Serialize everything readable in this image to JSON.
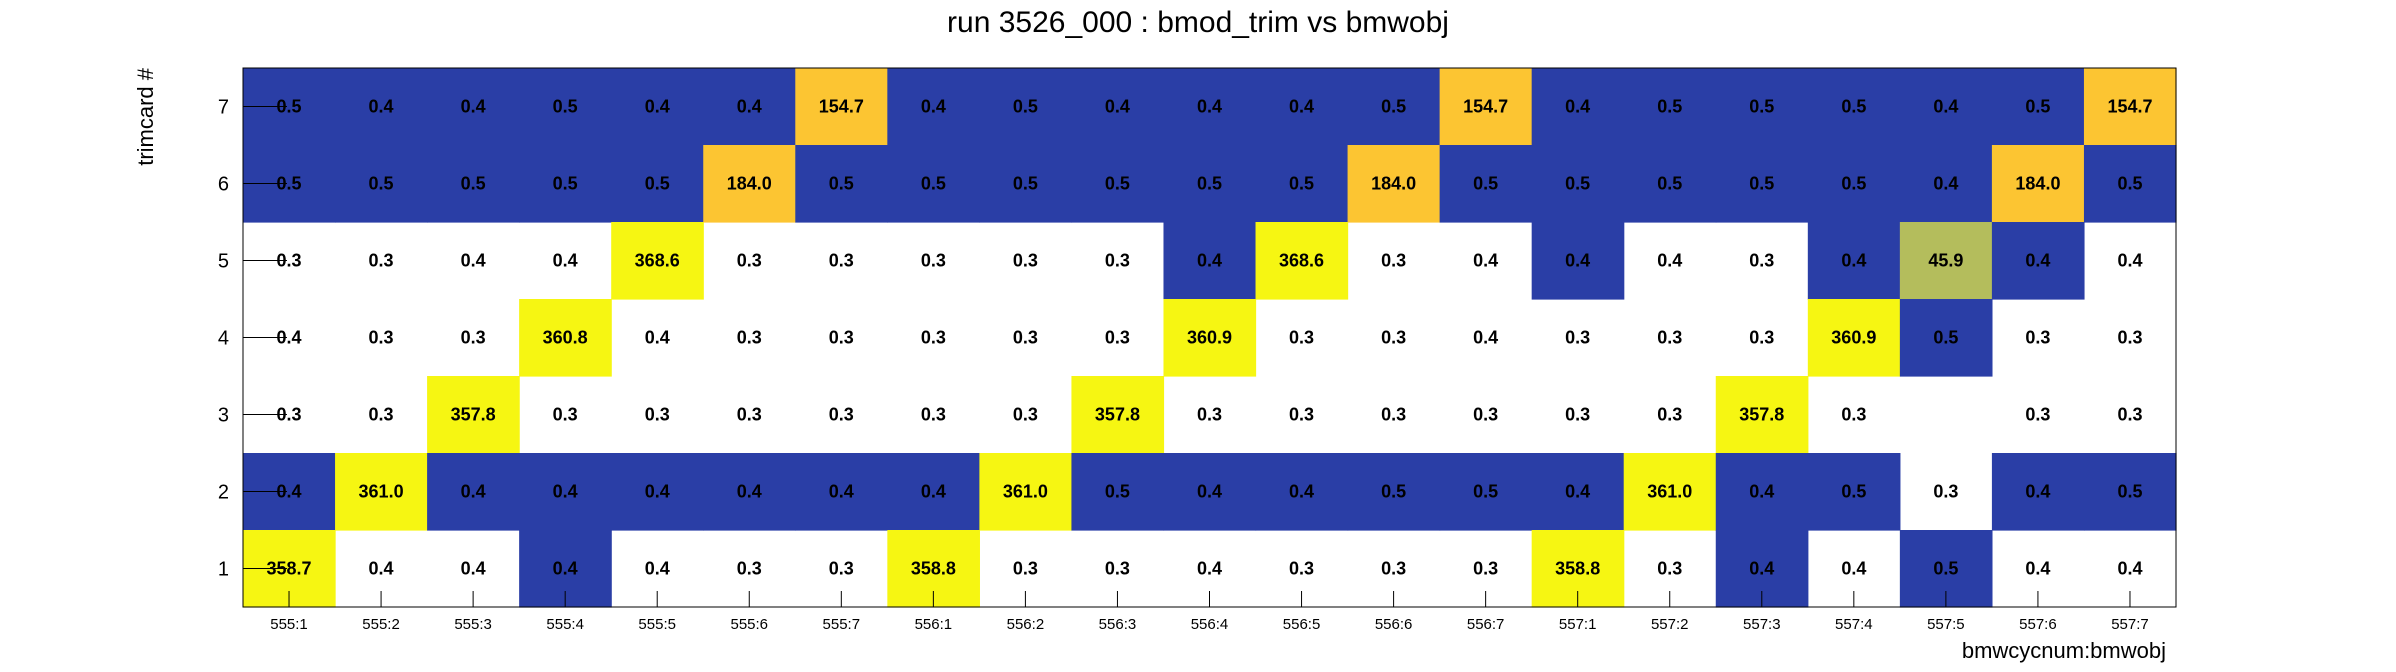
{
  "chart_data": {
    "type": "heatmap",
    "title": "run 3526_000 : bmod_trim vs bmwobj",
    "xlabel": "bmwcycnum:bmwobj",
    "ylabel": "trimcard #",
    "x_categories": [
      "555:1",
      "555:2",
      "555:3",
      "555:4",
      "555:5",
      "555:6",
      "555:7",
      "556:1",
      "556:2",
      "556:3",
      "556:4",
      "556:5",
      "556:6",
      "556:7",
      "557:1",
      "557:2",
      "557:3",
      "557:4",
      "557:5",
      "557:6",
      "557:7"
    ],
    "y_categories": [
      "1",
      "2",
      "3",
      "4",
      "5",
      "6",
      "7"
    ],
    "grid": false,
    "legend": "none",
    "colors": {
      "low": "#2a3ea6",
      "mid": "#b4bd5c",
      "high_a": "#fcc532",
      "high_b": "#f6f612",
      "text": "#000000",
      "zero": "#ffffff"
    },
    "rows": [
      {
        "y": "7",
        "values": [
          "0.5",
          "0.4",
          "0.4",
          "0.5",
          "0.4",
          "0.4",
          "154.7",
          "0.4",
          "0.5",
          "0.4",
          "0.4",
          "0.4",
          "0.5",
          "154.7",
          "0.4",
          "0.5",
          "0.5",
          "0.5",
          "0.4",
          "0.5",
          "154.7"
        ],
        "fills": [
          "low",
          "low",
          "low",
          "low",
          "low",
          "low",
          "high_a",
          "low",
          "low",
          "low",
          "low",
          "low",
          "low",
          "high_a",
          "low",
          "low",
          "low",
          "low",
          "low",
          "low",
          "high_a"
        ]
      },
      {
        "y": "6",
        "values": [
          "0.5",
          "0.5",
          "0.5",
          "0.5",
          "0.5",
          "184.0",
          "0.5",
          "0.5",
          "0.5",
          "0.5",
          "0.5",
          "0.5",
          "184.0",
          "0.5",
          "0.5",
          "0.5",
          "0.5",
          "0.5",
          "0.4",
          "184.0",
          "0.5"
        ],
        "fills": [
          "low",
          "low",
          "low",
          "low",
          "low",
          "high_a",
          "low",
          "low",
          "low",
          "low",
          "low",
          "low",
          "high_a",
          "low",
          "low",
          "low",
          "low",
          "low",
          "low",
          "high_a",
          "low"
        ]
      },
      {
        "y": "5",
        "values": [
          "0.3",
          "0.3",
          "0.4",
          "0.4",
          "368.6",
          "0.3",
          "0.3",
          "0.3",
          "0.3",
          "0.3",
          "0.4",
          "368.6",
          "0.3",
          "0.4",
          "0.4",
          "0.4",
          "0.3",
          "0.4",
          "45.9",
          "0.4",
          "0.4"
        ],
        "fills": [
          "zero",
          "zero",
          "zero",
          "zero",
          "high_b",
          "zero",
          "zero",
          "zero",
          "zero",
          "zero",
          "low",
          "high_b",
          "zero",
          "zero",
          "low",
          "zero",
          "zero",
          "low",
          "mid",
          "low",
          "zero"
        ]
      },
      {
        "y": "4",
        "values": [
          "0.4",
          "0.3",
          "0.3",
          "360.8",
          "0.4",
          "0.3",
          "0.3",
          "0.3",
          "0.3",
          "0.3",
          "360.9",
          "0.3",
          "0.3",
          "0.4",
          "0.3",
          "0.3",
          "0.3",
          "360.9",
          "0.5",
          "0.3",
          "0.3"
        ],
        "fills": [
          "zero",
          "zero",
          "zero",
          "high_b",
          "zero",
          "zero",
          "zero",
          "zero",
          "zero",
          "zero",
          "high_b",
          "zero",
          "zero",
          "zero",
          "zero",
          "zero",
          "zero",
          "high_b",
          "low",
          "zero",
          "zero"
        ]
      },
      {
        "y": "3",
        "values": [
          "0.3",
          "0.3",
          "357.8",
          "0.3",
          "0.3",
          "0.3",
          "0.3",
          "0.3",
          "0.3",
          "357.8",
          "0.3",
          "0.3",
          "0.3",
          "0.3",
          "0.3",
          "0.3",
          "357.8",
          "0.3",
          "",
          "0.3",
          "0.3"
        ],
        "fills": [
          "zero",
          "zero",
          "high_b",
          "zero",
          "zero",
          "zero",
          "zero",
          "zero",
          "zero",
          "high_b",
          "zero",
          "zero",
          "zero",
          "zero",
          "zero",
          "zero",
          "high_b",
          "zero",
          "zero",
          "zero",
          "zero"
        ]
      },
      {
        "y": "2",
        "values": [
          "0.4",
          "361.0",
          "0.4",
          "0.4",
          "0.4",
          "0.4",
          "0.4",
          "0.4",
          "361.0",
          "0.5",
          "0.4",
          "0.4",
          "0.5",
          "0.5",
          "0.4",
          "361.0",
          "0.4",
          "0.5",
          "0.3",
          "0.4",
          "0.5"
        ],
        "fills": [
          "low",
          "high_b",
          "low",
          "low",
          "low",
          "low",
          "low",
          "low",
          "high_b",
          "low",
          "low",
          "low",
          "low",
          "low",
          "low",
          "high_b",
          "low",
          "low",
          "zero",
          "low",
          "low"
        ]
      },
      {
        "y": "1",
        "values": [
          "358.7",
          "0.4",
          "0.4",
          "0.4",
          "0.4",
          "0.3",
          "0.3",
          "358.8",
          "0.3",
          "0.3",
          "0.4",
          "0.3",
          "0.3",
          "0.3",
          "358.8",
          "0.3",
          "0.4",
          "0.4",
          "0.5",
          "0.4",
          "0.4"
        ],
        "fills": [
          "high_b",
          "zero",
          "zero",
          "low",
          "zero",
          "zero",
          "zero",
          "high_b",
          "zero",
          "zero",
          "zero",
          "zero",
          "zero",
          "zero",
          "high_b",
          "zero",
          "low",
          "zero",
          "low",
          "zero",
          "zero"
        ]
      }
    ]
  }
}
